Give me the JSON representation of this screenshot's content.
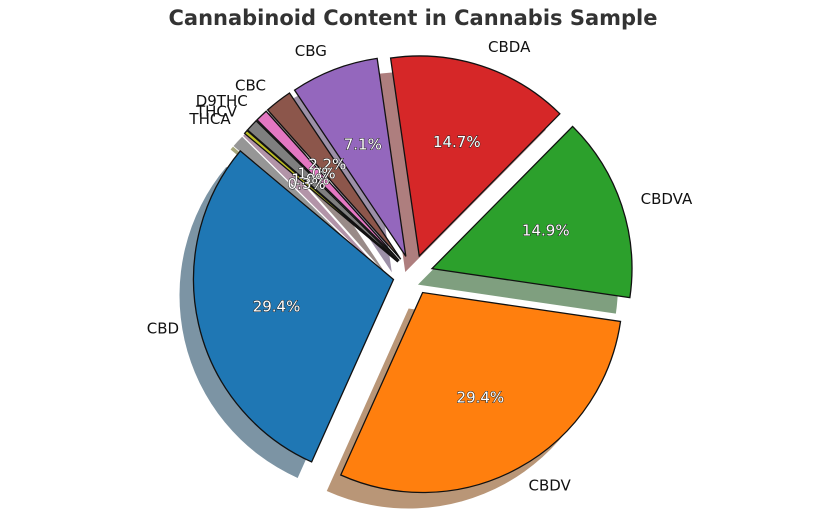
{
  "chart_data": {
    "type": "pie",
    "title": "Cannabinoid Content in Cannabis Sample",
    "startangle_deg": 140,
    "shadow": true,
    "explode_all": true,
    "slices": [
      {
        "label": "CBD",
        "value": 29.4,
        "pct_text": "29.4%",
        "color": "#1f77b4"
      },
      {
        "label": "CBDV",
        "value": 29.4,
        "pct_text": "29.4%",
        "color": "#ff7f0e"
      },
      {
        "label": "CBDVA",
        "value": 14.9,
        "pct_text": "14.9%",
        "color": "#2ca02c"
      },
      {
        "label": "CBDA",
        "value": 14.7,
        "pct_text": "14.7%",
        "color": "#d62728"
      },
      {
        "label": "CBG",
        "value": 7.1,
        "pct_text": "7.1%",
        "color": "#9467bd"
      },
      {
        "label": "CBC",
        "value": 2.2,
        "pct_text": "2.2%",
        "color": "#8c564b"
      },
      {
        "label": "D9THC",
        "value": 1.0,
        "pct_text": "1.0%",
        "color": "#e377c2"
      },
      {
        "label": "THCV",
        "value": 1.0,
        "pct_text": "1.0%",
        "color": "#7f7f7f"
      },
      {
        "label": "THCA",
        "value": 0.3,
        "pct_text": "0.3%",
        "color": "#bcbd22"
      }
    ]
  }
}
